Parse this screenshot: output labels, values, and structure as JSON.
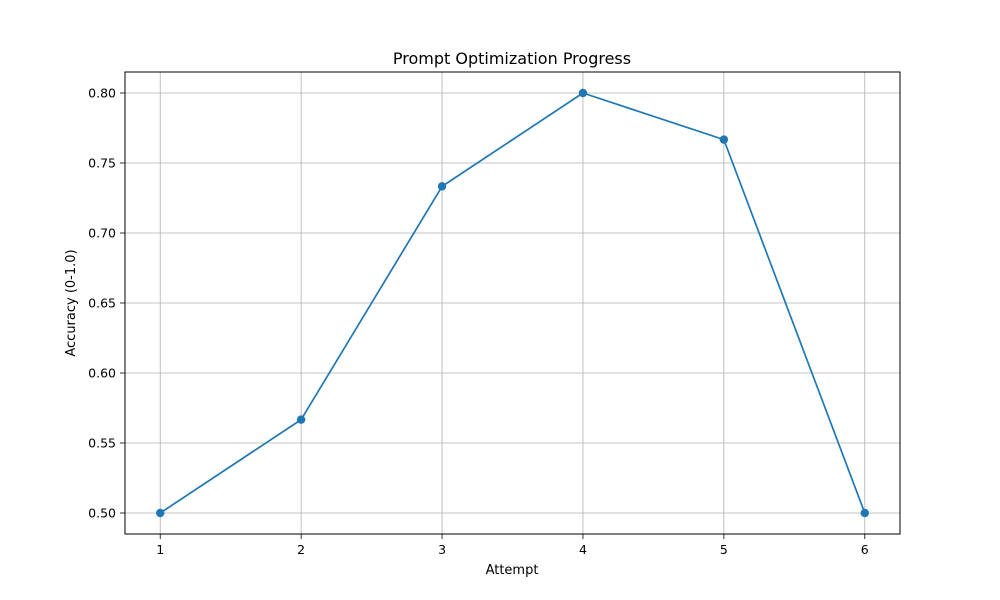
{
  "chart_data": {
    "type": "line",
    "title": "Prompt Optimization Progress",
    "xlabel": "Attempt",
    "ylabel": "Accuracy (0-1.0)",
    "x": [
      1,
      2,
      3,
      4,
      5,
      6
    ],
    "series": [
      {
        "values": [
          0.5,
          0.5667,
          0.7333,
          0.8,
          0.7667,
          0.5
        ],
        "color": "#1f77b4",
        "marker": "circle"
      }
    ],
    "xlim": [
      0.75,
      6.25
    ],
    "ylim": [
      0.485,
      0.815
    ],
    "xticks": [
      1,
      2,
      3,
      4,
      5,
      6
    ],
    "xtick_labels": [
      "1",
      "2",
      "3",
      "4",
      "5",
      "6"
    ],
    "yticks": [
      0.5,
      0.55,
      0.6,
      0.65,
      0.7,
      0.75,
      0.8
    ],
    "ytick_labels": [
      "0.50",
      "0.55",
      "0.60",
      "0.65",
      "0.70",
      "0.75",
      "0.80"
    ],
    "grid": true,
    "grid_color": "#b0b0b0",
    "legend": false
  }
}
